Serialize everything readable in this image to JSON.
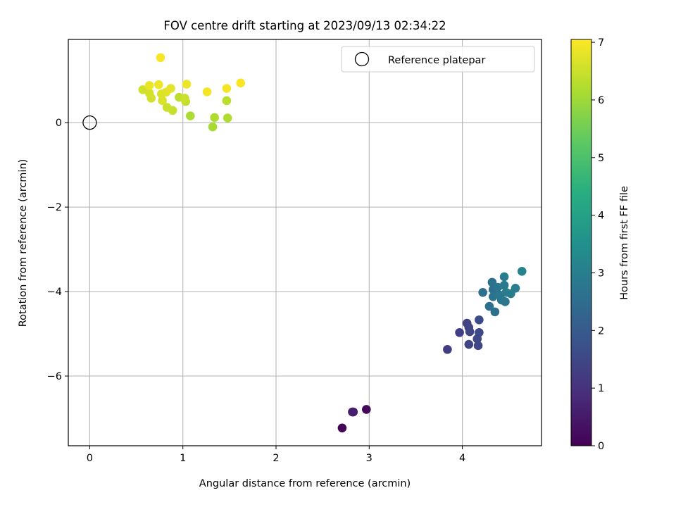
{
  "chart_data": {
    "type": "scatter",
    "title": "FOV centre drift starting at 2023/09/13 02:34:22",
    "xlabel": "Angular distance from reference (arcmin)",
    "ylabel": "Rotation from reference (arcmin)",
    "xlim": [
      -0.23,
      4.85
    ],
    "ylim": [
      -7.65,
      1.97
    ],
    "xticks": [
      0,
      1,
      2,
      3,
      4
    ],
    "yticks": [
      0,
      -2,
      -4,
      -6
    ],
    "grid": true,
    "legend": {
      "placement": "top-right",
      "entries": [
        "Reference platepar"
      ]
    },
    "reference_point": {
      "x": 0,
      "y": 0,
      "label": "Reference platepar"
    },
    "colorbar": {
      "label": "Hours from first FF file",
      "colormap": "viridis",
      "range": [
        0,
        7.05
      ],
      "ticks": [
        0,
        1,
        2,
        3,
        4,
        5,
        6,
        7
      ]
    },
    "points": [
      {
        "x": 2.71,
        "y": -7.23,
        "c": 0.05
      },
      {
        "x": 2.97,
        "y": -6.79,
        "c": 0.1
      },
      {
        "x": 2.82,
        "y": -6.85,
        "c": 0.5
      },
      {
        "x": 2.83,
        "y": -6.85,
        "c": 0.6
      },
      {
        "x": 3.84,
        "y": -5.37,
        "c": 1.25
      },
      {
        "x": 3.97,
        "y": -4.97,
        "c": 1.3
      },
      {
        "x": 4.05,
        "y": -4.75,
        "c": 1.35
      },
      {
        "x": 4.07,
        "y": -4.85,
        "c": 1.4
      },
      {
        "x": 4.07,
        "y": -5.25,
        "c": 1.4
      },
      {
        "x": 4.08,
        "y": -4.95,
        "c": 1.45
      },
      {
        "x": 4.16,
        "y": -5.12,
        "c": 1.5
      },
      {
        "x": 4.17,
        "y": -5.28,
        "c": 1.5
      },
      {
        "x": 4.18,
        "y": -4.97,
        "c": 1.55
      },
      {
        "x": 4.18,
        "y": -4.67,
        "c": 1.6
      },
      {
        "x": 4.22,
        "y": -4.02,
        "c": 2.55
      },
      {
        "x": 4.29,
        "y": -4.35,
        "c": 2.6
      },
      {
        "x": 4.32,
        "y": -3.78,
        "c": 2.65
      },
      {
        "x": 4.33,
        "y": -3.95,
        "c": 2.6
      },
      {
        "x": 4.33,
        "y": -4.12,
        "c": 2.7
      },
      {
        "x": 4.35,
        "y": -4.48,
        "c": 2.6
      },
      {
        "x": 4.38,
        "y": -3.9,
        "c": 2.75
      },
      {
        "x": 4.4,
        "y": -4.08,
        "c": 2.8
      },
      {
        "x": 4.42,
        "y": -4.2,
        "c": 2.75
      },
      {
        "x": 4.45,
        "y": -3.65,
        "c": 2.9
      },
      {
        "x": 4.45,
        "y": -3.85,
        "c": 2.85
      },
      {
        "x": 4.46,
        "y": -4.24,
        "c": 2.8
      },
      {
        "x": 4.47,
        "y": -4.02,
        "c": 2.9
      },
      {
        "x": 4.52,
        "y": -4.05,
        "c": 2.95
      },
      {
        "x": 4.57,
        "y": -3.92,
        "c": 3.0
      },
      {
        "x": 4.64,
        "y": -3.52,
        "c": 3.1
      },
      {
        "x": 1.08,
        "y": 0.16,
        "c": 6.15
      },
      {
        "x": 1.32,
        "y": -0.1,
        "c": 6.1
      },
      {
        "x": 1.34,
        "y": 0.12,
        "c": 6.2
      },
      {
        "x": 1.48,
        "y": 0.11,
        "c": 6.2
      },
      {
        "x": 1.47,
        "y": 0.52,
        "c": 6.3
      },
      {
        "x": 0.96,
        "y": 0.6,
        "c": 6.35
      },
      {
        "x": 1.03,
        "y": 0.5,
        "c": 6.4
      },
      {
        "x": 0.89,
        "y": 0.29,
        "c": 6.45
      },
      {
        "x": 0.83,
        "y": 0.36,
        "c": 6.5
      },
      {
        "x": 1.02,
        "y": 0.58,
        "c": 6.5
      },
      {
        "x": 0.57,
        "y": 0.78,
        "c": 6.55
      },
      {
        "x": 0.64,
        "y": 0.7,
        "c": 6.6
      },
      {
        "x": 0.66,
        "y": 0.58,
        "c": 6.6
      },
      {
        "x": 0.78,
        "y": 0.52,
        "c": 6.65
      },
      {
        "x": 0.77,
        "y": 0.68,
        "c": 6.7
      },
      {
        "x": 0.82,
        "y": 0.72,
        "c": 6.75
      },
      {
        "x": 0.87,
        "y": 0.81,
        "c": 6.8
      },
      {
        "x": 0.64,
        "y": 0.88,
        "c": 6.85
      },
      {
        "x": 0.74,
        "y": 0.9,
        "c": 6.9
      },
      {
        "x": 1.04,
        "y": 0.91,
        "c": 6.9
      },
      {
        "x": 1.26,
        "y": 0.73,
        "c": 6.95
      },
      {
        "x": 1.47,
        "y": 0.81,
        "c": 6.95
      },
      {
        "x": 0.76,
        "y": 1.54,
        "c": 7.0
      },
      {
        "x": 1.62,
        "y": 0.94,
        "c": 7.0
      }
    ]
  }
}
